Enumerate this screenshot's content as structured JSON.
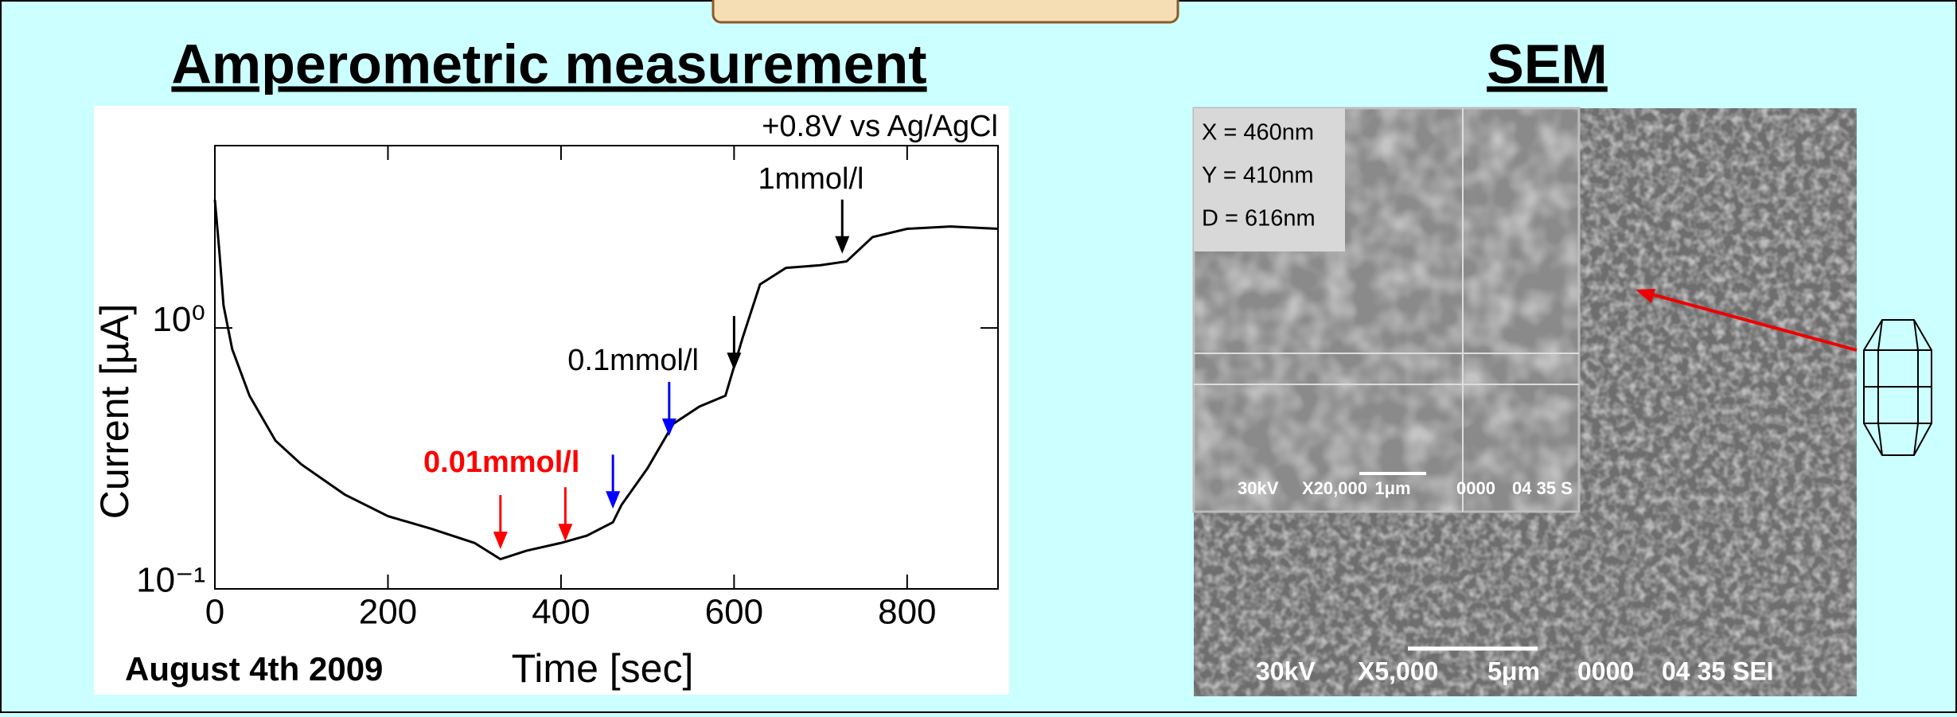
{
  "header": {
    "left_title": "Amperometric measurement",
    "right_title": "SEM"
  },
  "chart_data": {
    "type": "line",
    "x_label": "Time [sec]",
    "y_label": "Current [µA]",
    "date": "August 4th 2009",
    "x": [
      0,
      5,
      10,
      20,
      40,
      70,
      100,
      150,
      200,
      250,
      300,
      330,
      360,
      400,
      430,
      460,
      470,
      500,
      530,
      560,
      590,
      610,
      630,
      660,
      700,
      730,
      760,
      800,
      850,
      905
    ],
    "series": [
      {
        "color": "#000000",
        "values": [
          3.1,
          2.0,
          1.22,
          0.83,
          0.55,
          0.37,
          0.3,
          0.23,
          0.19,
          0.17,
          0.15,
          0.13,
          0.14,
          0.15,
          0.16,
          0.18,
          0.21,
          0.29,
          0.43,
          0.5,
          0.55,
          0.92,
          1.47,
          1.7,
          1.74,
          1.8,
          2.23,
          2.4,
          2.45,
          2.4
        ]
      }
    ],
    "xlim": [
      0,
      905
    ],
    "ylim": [
      0.1,
      5
    ],
    "log_y": true,
    "xticks": [
      0,
      200,
      400,
      600,
      800
    ],
    "yticks": [
      {
        "value": 0.1,
        "label": "10⁻¹"
      },
      {
        "value": 1,
        "label": "10⁰"
      }
    ],
    "annotations": [
      {
        "text": "+0.8V vs Ag/AgCl",
        "color": "#000000"
      },
      {
        "text": "1mmol/l",
        "color": "#000000"
      },
      {
        "text": "0.1mmol/l",
        "color": "#000000"
      },
      {
        "text": "0.01mmol/l",
        "color": "#ff0000"
      }
    ],
    "arrows": [
      {
        "x": 330,
        "y": 0.14,
        "color": "#ff0000"
      },
      {
        "x": 405,
        "y": 0.15,
        "color": "#ff0000"
      },
      {
        "x": 460,
        "y": 0.2,
        "color": "#0000ff"
      },
      {
        "x": 525,
        "y": 0.38,
        "color": "#0000ff"
      },
      {
        "x": 600,
        "y": 0.68,
        "color": "#000000"
      },
      {
        "x": 725,
        "y": 1.9,
        "color": "#000000"
      }
    ]
  },
  "sem": {
    "inset_labels": [
      "X = 460nm",
      "Y = 410nm",
      "D = 616nm"
    ],
    "inset_bar": [
      "30kV",
      "X20,000",
      "1μm",
      "0000",
      "04 35 S"
    ],
    "main_bar": [
      "30kV",
      "X5,000",
      "5μm",
      "0000",
      "04 35 SEI"
    ]
  }
}
